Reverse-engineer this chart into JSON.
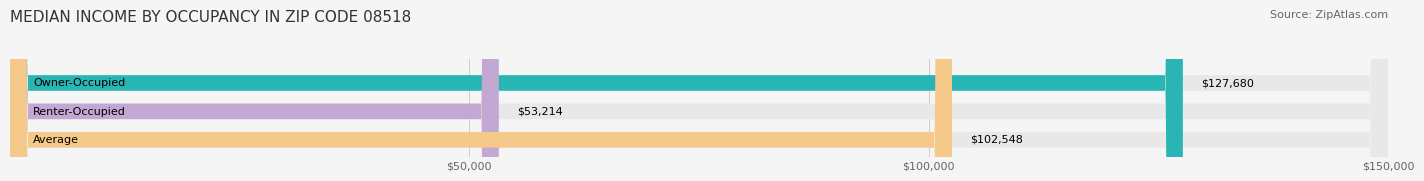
{
  "title": "MEDIAN INCOME BY OCCUPANCY IN ZIP CODE 08518",
  "source": "Source: ZipAtlas.com",
  "categories": [
    "Owner-Occupied",
    "Renter-Occupied",
    "Average"
  ],
  "values": [
    127680,
    53214,
    102548
  ],
  "bar_colors": [
    "#2ab5b5",
    "#c4a8d4",
    "#f5c98a"
  ],
  "bar_bg_color": "#e8e8e8",
  "value_labels": [
    "$127,680",
    "$53,214",
    "$102,548"
  ],
  "xlim": [
    0,
    150000
  ],
  "xticks": [
    0,
    50000,
    100000,
    150000
  ],
  "xtick_labels": [
    "$50,000",
    "$100,000",
    "$150,000"
  ],
  "title_fontsize": 11,
  "source_fontsize": 8,
  "label_fontsize": 8,
  "value_fontsize": 8,
  "background_color": "#f5f5f5",
  "bar_height": 0.55
}
